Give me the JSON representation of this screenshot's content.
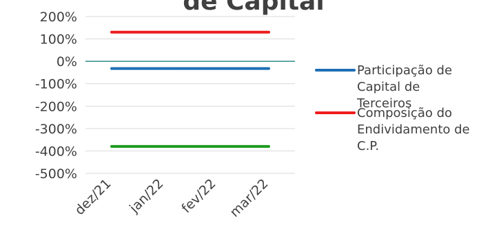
{
  "chart_data": {
    "type": "line",
    "title": "de Capital",
    "categories": [
      "dez/21",
      "jan/22",
      "fev/22",
      "mar/22"
    ],
    "ylim": [
      -500,
      200
    ],
    "yticks": [
      200,
      100,
      0,
      -100,
      -200,
      -300,
      -400,
      -500
    ],
    "ytick_format": "%",
    "grid": true,
    "legend_placement": "right",
    "series": [
      {
        "name": "Participação de Capital de Terceiros",
        "legend_lines": [
          "Participação de",
          "Capital de",
          "Terceiros"
        ],
        "color": "#1f6fb5",
        "values": [
          -32,
          -32,
          -32,
          -32
        ]
      },
      {
        "name": "Composição do Endividamento de C.P.",
        "legend_lines": [
          "Composição do",
          "Endividamento de",
          "C.P."
        ],
        "color": "#ee1c1c",
        "values": [
          130,
          130,
          130,
          130
        ]
      },
      {
        "name": "",
        "color": "#1e9a1e",
        "values": [
          -380,
          -380,
          -380,
          -380
        ]
      }
    ],
    "zero_line_color": "#2e8b8b",
    "grid_color": "#d9d9d9"
  }
}
